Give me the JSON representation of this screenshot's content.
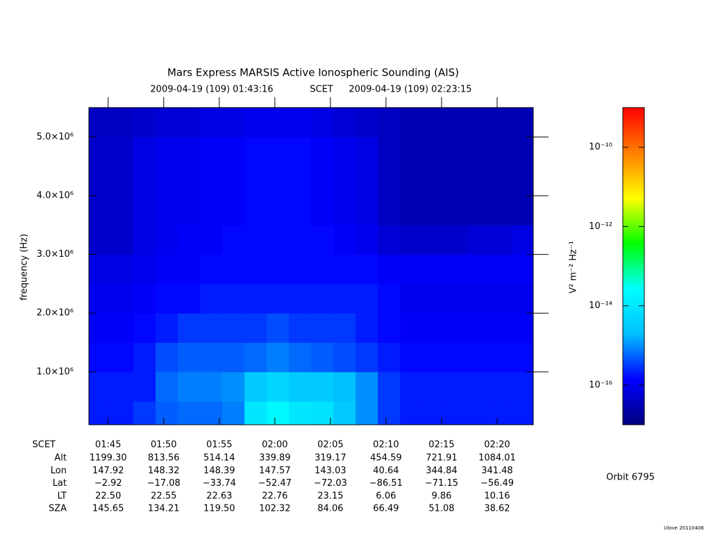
{
  "chart_data": {
    "type": "heatmap",
    "title": "Mars Express MARSIS Active Ionospheric Sounding (AIS)",
    "subtitle": {
      "start": "2009-04-19 (109) 01:43:16",
      "label": "SCET",
      "end": "2009-04-19 (109) 02:23:15"
    },
    "ylabel": "frequency (Hz)",
    "xlim": [
      "01:43:16",
      "02:23:15"
    ],
    "xticks": [
      "01:45",
      "01:50",
      "01:55",
      "02:00",
      "02:05",
      "02:10",
      "02:15",
      "02:20"
    ],
    "ylim": [
      100000,
      5500000
    ],
    "yticks": [
      {
        "value": 1000000,
        "label": "1.0×10⁶"
      },
      {
        "value": 2000000,
        "label": "2.0×10⁶"
      },
      {
        "value": 3000000,
        "label": "3.0×10⁶"
      },
      {
        "value": 4000000,
        "label": "4.0×10⁶"
      },
      {
        "value": 5000000,
        "label": "5.0×10⁶"
      }
    ],
    "x_bins": [
      "01:43:16",
      "01:45:16",
      "01:47:16",
      "01:49:16",
      "01:51:16",
      "01:53:16",
      "01:55:16",
      "01:57:16",
      "01:59:16",
      "02:01:16",
      "02:03:16",
      "02:05:16",
      "02:07:16",
      "02:09:16",
      "02:11:16",
      "02:13:16",
      "02:15:16",
      "02:17:16",
      "02:19:16",
      "02:21:16",
      "02:23:15"
    ],
    "y_bins": [
      100000,
      500000,
      1000000,
      1500000,
      2000000,
      2500000,
      3000000,
      3500000,
      4000000,
      4500000,
      5000000,
      5500000
    ],
    "values": [
      [
        2e-16,
        2e-16,
        3e-16,
        5e-16,
        6e-16,
        6e-16,
        8e-16,
        1e-14,
        2e-14,
        1e-14,
        8e-15,
        3e-15,
        1e-15,
        3e-16,
        2e-16,
        2e-16,
        2e-16,
        2e-16,
        2e-16,
        2e-16
      ],
      [
        2e-16,
        2e-16,
        2e-16,
        6e-16,
        8e-16,
        8e-16,
        1e-15,
        3e-15,
        5e-15,
        3e-15,
        3e-15,
        2e-15,
        1e-15,
        3e-16,
        2e-16,
        2e-16,
        2e-16,
        2e-16,
        2e-16,
        2e-16
      ],
      [
        1.5e-16,
        1.5e-16,
        2e-16,
        4e-16,
        5e-16,
        5e-16,
        5e-16,
        6e-16,
        8e-16,
        6e-16,
        5e-16,
        4e-16,
        3e-16,
        2e-16,
        1.5e-16,
        1.5e-16,
        1.5e-16,
        1.5e-16,
        1.5e-16,
        1.5e-16
      ],
      [
        1.2e-16,
        1.2e-16,
        1.5e-16,
        2e-16,
        3e-16,
        3e-16,
        3e-16,
        3e-16,
        4e-16,
        3e-16,
        3e-16,
        3e-16,
        2e-16,
        1.5e-16,
        1.2e-16,
        1.2e-16,
        1.2e-16,
        1.2e-16,
        1.2e-16,
        1.2e-16
      ],
      [
        1e-16,
        1e-16,
        1.2e-16,
        1.5e-16,
        1.5e-16,
        2e-16,
        2e-16,
        2e-16,
        2e-16,
        2e-16,
        2e-16,
        2e-16,
        2e-16,
        1.5e-16,
        1e-16,
        1e-16,
        1e-16,
        1e-16,
        1e-16,
        1e-16
      ],
      [
        8e-17,
        8e-17,
        1e-16,
        1.2e-16,
        1.2e-16,
        1.5e-16,
        1.5e-16,
        1.5e-16,
        1.5e-16,
        1.5e-16,
        1.5e-16,
        1.5e-16,
        1.5e-16,
        1.2e-16,
        1.2e-16,
        1.2e-16,
        1.2e-16,
        1.2e-16,
        1.2e-16,
        1.2e-16
      ],
      [
        5e-17,
        5e-17,
        8e-17,
        1e-16,
        1.2e-16,
        1.2e-16,
        1.5e-16,
        1.5e-16,
        1.5e-16,
        1.5e-16,
        1.5e-16,
        1.2e-16,
        1e-16,
        6e-17,
        5e-17,
        5e-17,
        5e-17,
        6e-17,
        6e-17,
        8e-17
      ],
      [
        5e-17,
        5e-17,
        8e-17,
        1e-16,
        1e-16,
        1.2e-16,
        1.2e-16,
        1.5e-16,
        1.5e-16,
        1.5e-16,
        1.2e-16,
        1e-16,
        8e-17,
        4e-17,
        3e-17,
        3e-17,
        3e-17,
        3e-17,
        3e-17,
        3e-17
      ],
      [
        5e-17,
        5e-17,
        8e-17,
        1e-16,
        1e-16,
        1.2e-16,
        1.2e-16,
        1.5e-16,
        1.5e-16,
        1.5e-16,
        1.2e-16,
        1e-16,
        8e-17,
        4e-17,
        3e-17,
        3e-17,
        3e-17,
        3e-17,
        3e-17,
        3e-17
      ],
      [
        5e-17,
        5e-17,
        8e-17,
        1e-16,
        1e-16,
        1.2e-16,
        1.2e-16,
        1.5e-16,
        1.5e-16,
        1.5e-16,
        1.2e-16,
        1e-16,
        8e-17,
        4e-17,
        3e-17,
        3e-17,
        3e-17,
        3e-17,
        3e-17,
        3e-17
      ],
      [
        4e-17,
        4e-17,
        5e-17,
        6e-17,
        6e-17,
        8e-17,
        8e-17,
        1e-16,
        1e-16,
        1e-16,
        8e-17,
        6e-17,
        5e-17,
        4e-17,
        3e-17,
        3e-17,
        3e-17,
        3e-17,
        3e-17,
        3e-17
      ]
    ],
    "colormap": [
      "#00007f",
      "#0000ff",
      "#00bfff",
      "#00ffff",
      "#00ff00",
      "#ffff00",
      "#ff7f00",
      "#ff0000"
    ],
    "colorbar": {
      "label": "V² m⁻² Hz⁻¹",
      "log": true,
      "lim": [
        1e-17,
        1e-09
      ],
      "ticks": [
        {
          "value": 1e-10,
          "label": "10⁻¹⁰"
        },
        {
          "value": 1e-12,
          "label": "10⁻¹²"
        },
        {
          "value": 1e-14,
          "label": "10⁻¹⁴"
        },
        {
          "value": 1e-16,
          "label": "10⁻¹⁶"
        }
      ]
    },
    "ephemeris": {
      "scet_label": "SCET",
      "rows": [
        {
          "label": "Alt",
          "values": [
            "1199.30",
            "813.56",
            "514.14",
            "339.89",
            "319.17",
            "454.59",
            "721.91",
            "1084.01"
          ]
        },
        {
          "label": "Lon",
          "values": [
            "147.92",
            "148.32",
            "148.39",
            "147.57",
            "143.03",
            "40.64",
            "344.84",
            "341.48"
          ]
        },
        {
          "label": "Lat",
          "values": [
            "−2.92",
            "−17.08",
            "−33.74",
            "−52.47",
            "−72.03",
            "−86.51",
            "−71.15",
            "−56.49"
          ]
        },
        {
          "label": "LT",
          "values": [
            "22.50",
            "22.55",
            "22.63",
            "22.76",
            "23.15",
            "6.06",
            "9.86",
            "10.16"
          ]
        },
        {
          "label": "SZA",
          "values": [
            "145.65",
            "134.21",
            "119.50",
            "102.32",
            "84.06",
            "66.49",
            "51.08",
            "38.62"
          ]
        }
      ]
    },
    "orbit": "Orbit 6795",
    "footer": "Ulove 20110406"
  }
}
